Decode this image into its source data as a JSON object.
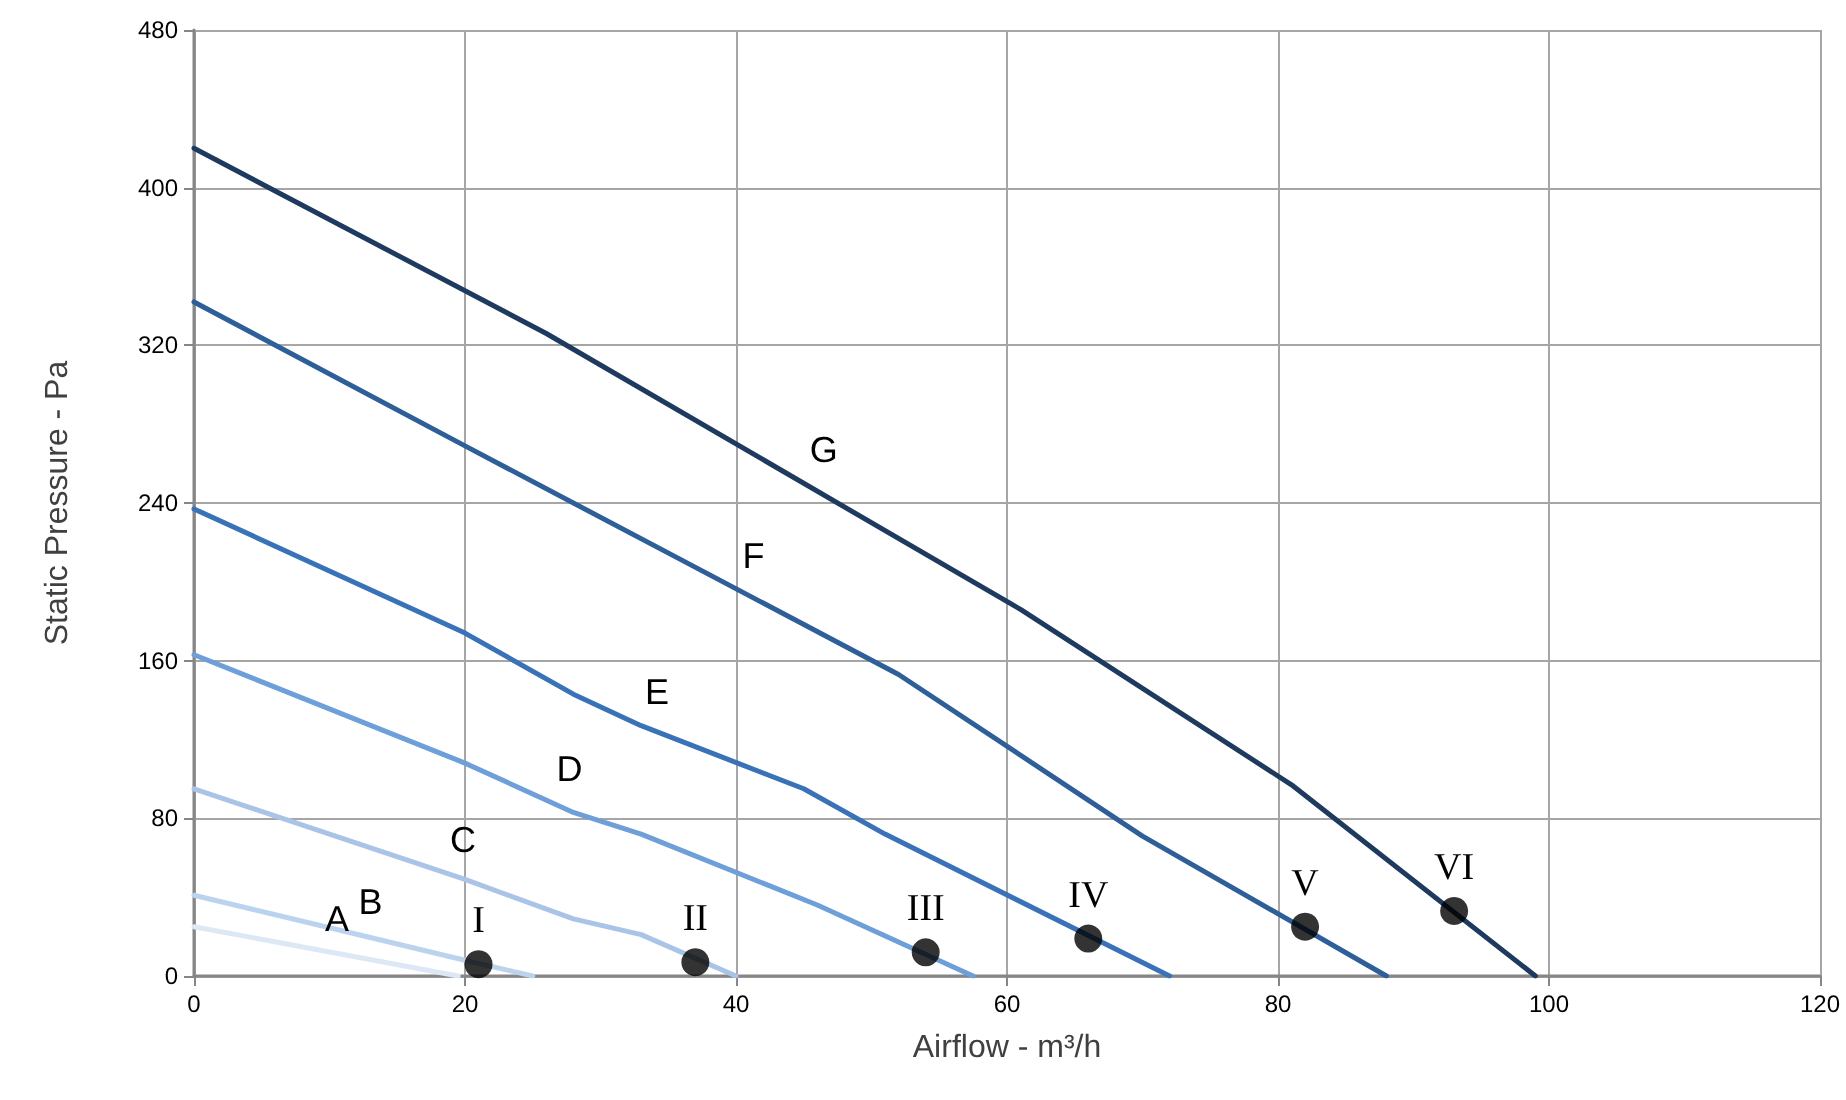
{
  "chart_data": {
    "type": "line",
    "xlabel": "Airflow - m³/h",
    "ylabel": "Static Pressure - Pa",
    "xlim": [
      0,
      120
    ],
    "xticks": [
      0,
      20,
      40,
      60,
      80,
      100,
      120
    ],
    "ylim": [
      0,
      480
    ],
    "yticks": [
      0,
      80,
      160,
      240,
      320,
      400,
      480
    ],
    "grid": true,
    "marker": "none",
    "series": [
      {
        "name": "A",
        "color": "#dde8f5",
        "x": [
          0,
          19.5
        ],
        "values": [
          25,
          0
        ]
      },
      {
        "name": "B",
        "color": "#bcd3ee",
        "x": [
          0,
          20,
          25
        ],
        "values": [
          41,
          8,
          0
        ]
      },
      {
        "name": "C",
        "color": "#a9c4e6",
        "x": [
          0,
          20,
          28,
          33,
          40
        ],
        "values": [
          95,
          49,
          29,
          21,
          0
        ]
      },
      {
        "name": "D",
        "color": "#6f9fd8",
        "x": [
          0,
          20,
          28,
          33,
          46,
          57.5
        ],
        "values": [
          163,
          108,
          83,
          72,
          36,
          0
        ]
      },
      {
        "name": "E",
        "color": "#3a72b8",
        "x": [
          0,
          20,
          28,
          33,
          45,
          51,
          72
        ],
        "values": [
          237,
          174,
          143,
          127,
          95,
          72,
          0
        ]
      },
      {
        "name": "F",
        "color": "#2e5f99",
        "x": [
          0,
          20,
          36,
          52,
          70,
          88
        ],
        "values": [
          342,
          269,
          211,
          153,
          71,
          0
        ]
      },
      {
        "name": "G",
        "color": "#1f3a5f",
        "x": [
          0,
          26,
          61,
          81,
          99
        ],
        "values": [
          420,
          326,
          186,
          97,
          0
        ]
      },
      {
        "type": "scatter",
        "marker": "circle",
        "color": "#000000",
        "x": [
          21,
          37,
          54,
          66,
          82,
          93
        ],
        "values": [
          6,
          7,
          12,
          19,
          25,
          33
        ]
      }
    ],
    "annotations": [
      {
        "text": "I",
        "x": 21,
        "y": 6
      },
      {
        "text": "II",
        "x": 37,
        "y": 7
      },
      {
        "text": "III",
        "x": 54,
        "y": 12
      },
      {
        "text": "IV",
        "x": 66,
        "y": 19
      },
      {
        "text": "V",
        "x": 82,
        "y": 25
      },
      {
        "text": "VI",
        "x": 93,
        "y": 33
      }
    ]
  }
}
